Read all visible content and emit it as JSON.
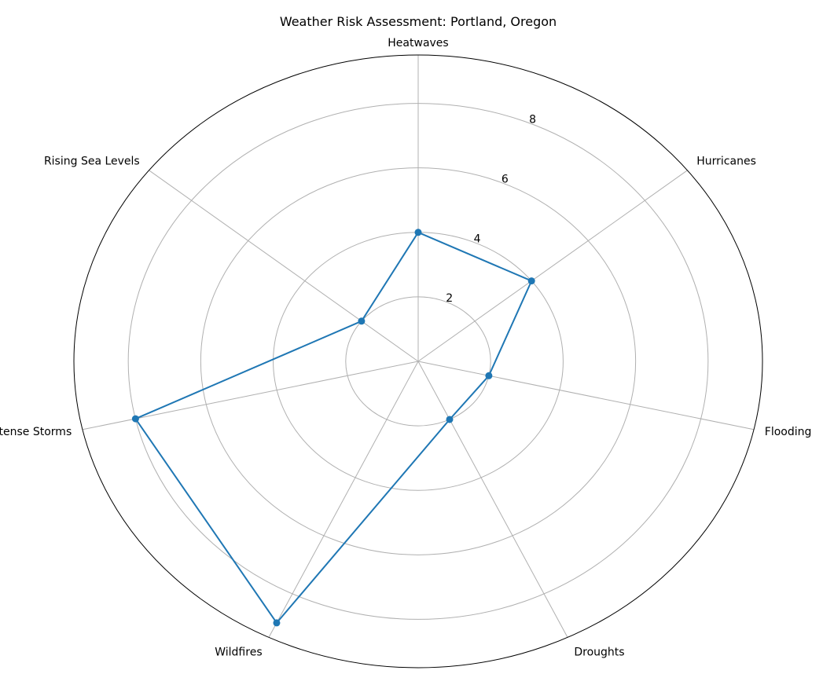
{
  "chart_data": {
    "type": "radar",
    "title": "Weather Risk Assessment: Portland, Oregon",
    "categories": [
      "Heatwaves",
      "Hurricanes",
      "Flooding",
      "Droughts",
      "Wildfires",
      "Intense Storms",
      "Rising Sea Levels"
    ],
    "series": [
      {
        "values": [
          4,
          4,
          2,
          2,
          9,
          8,
          2
        ],
        "color": "#1f77b4"
      }
    ],
    "r_ticks": [
      2,
      4,
      6,
      8
    ],
    "rlim": [
      0,
      9.5
    ],
    "grid": true,
    "outline_color": "#000000",
    "grid_color": "#b0b0b0"
  }
}
